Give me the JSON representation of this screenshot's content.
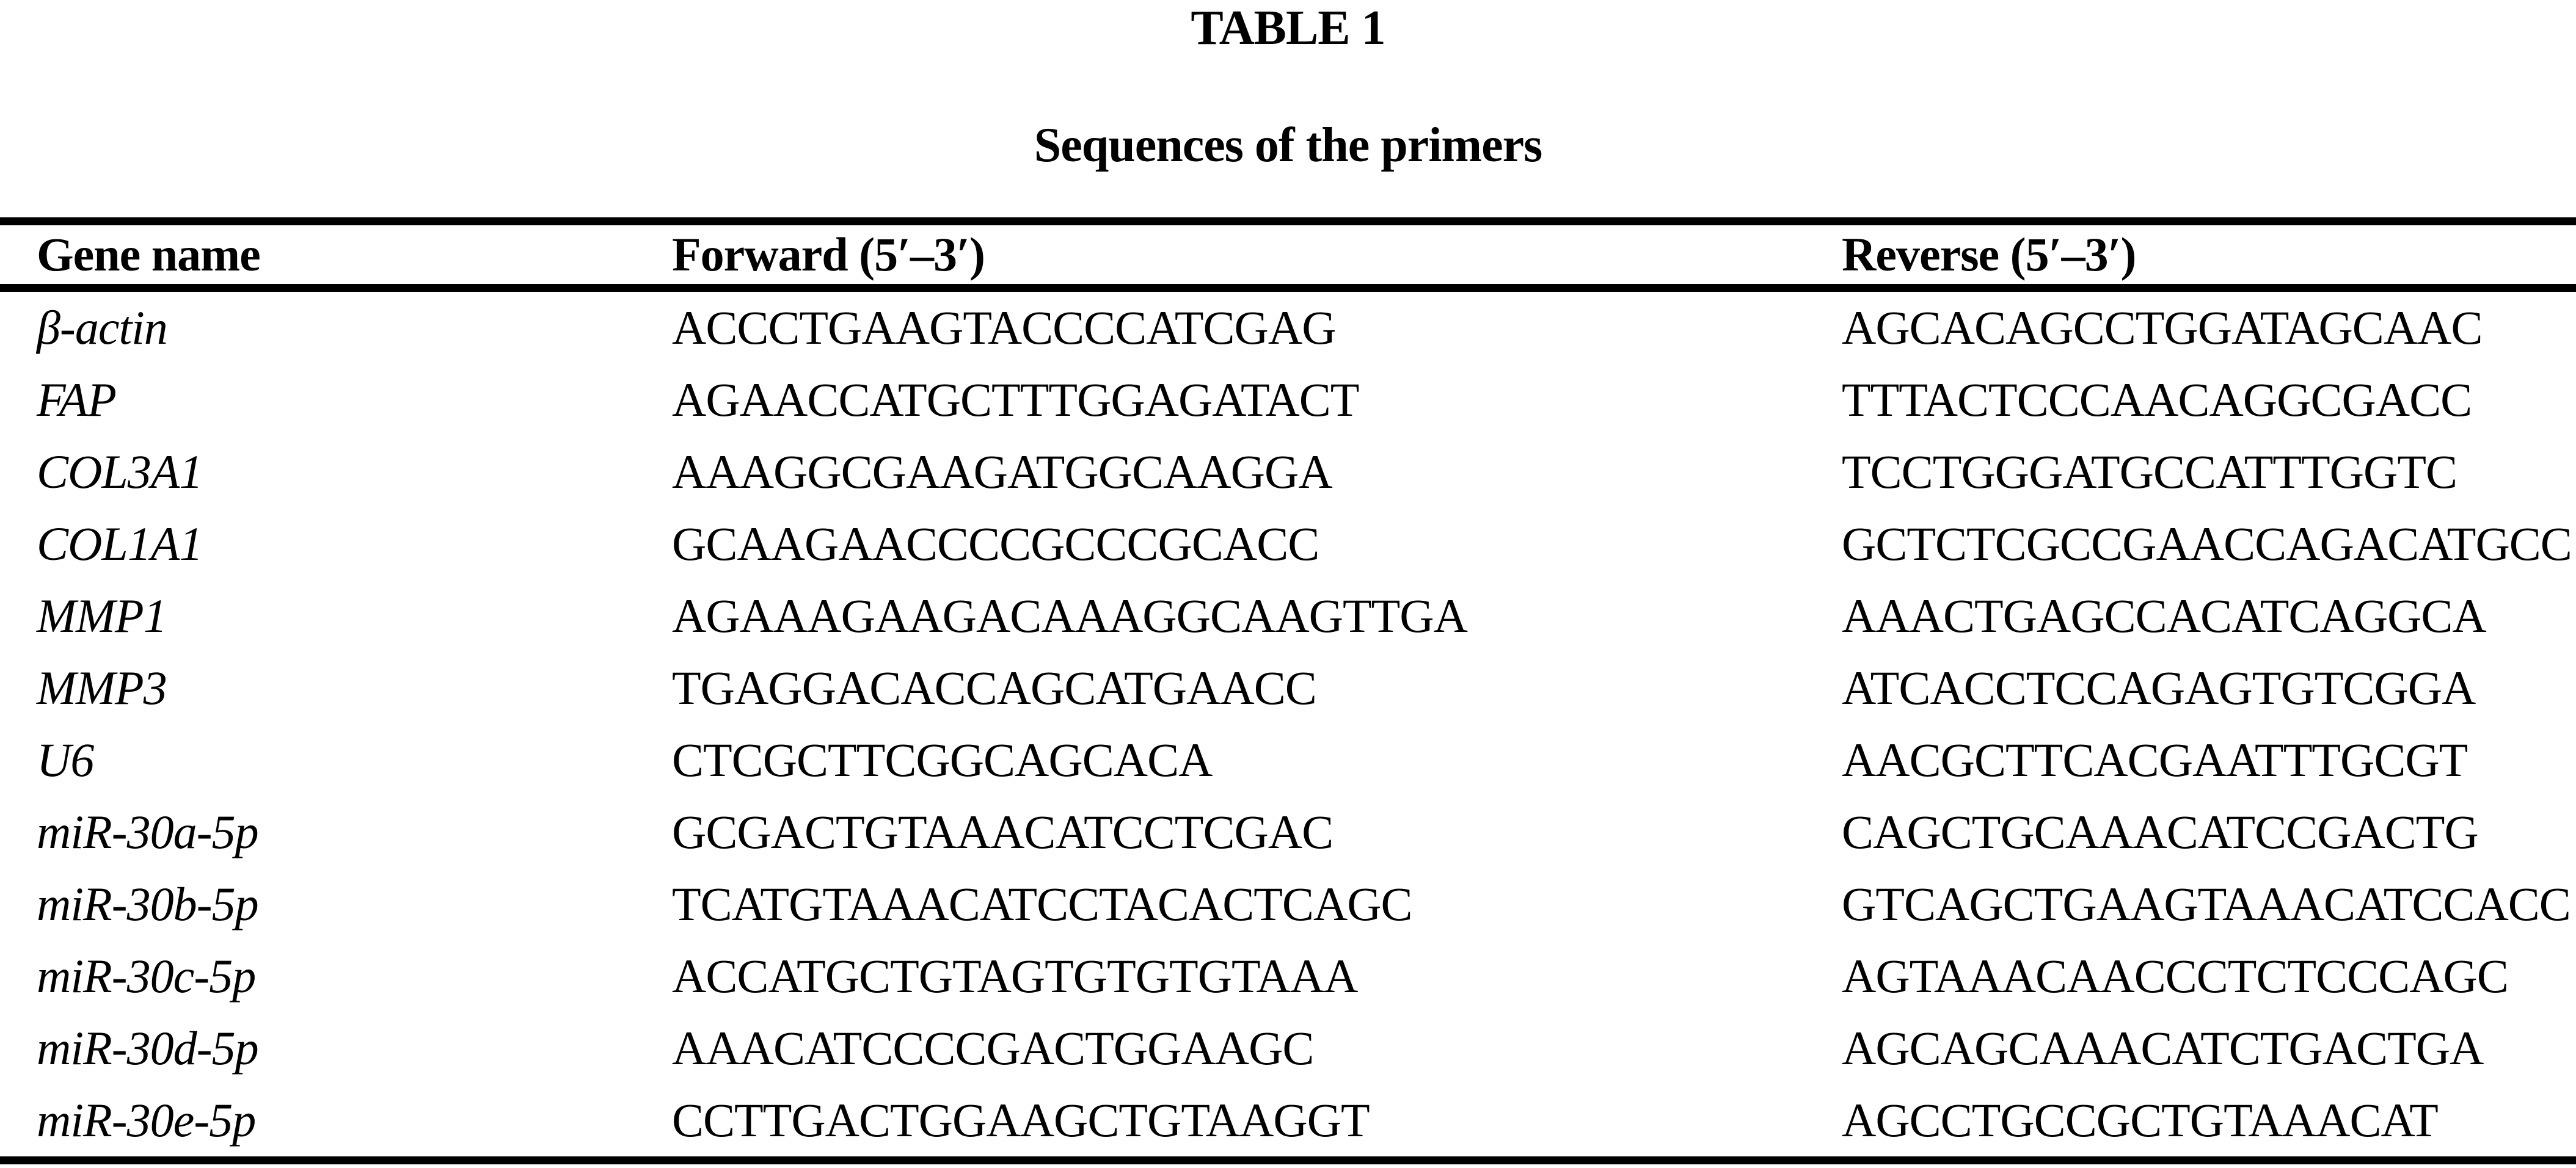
{
  "title": "TABLE 1",
  "subtitle": "Sequences of the primers",
  "table": {
    "columns": [
      "Gene name",
      "Forward (5′–3′)",
      "Reverse (5′–3′)"
    ],
    "rows": [
      {
        "gene": "β-actin",
        "forward": "ACCCTGAAGTACCCCATCGAG",
        "reverse": "AGCACAGCCTGGATAGCAAC"
      },
      {
        "gene": "FAP",
        "forward": "AGAACCATGCTTTGGAGATACT",
        "reverse": "TTTACTCCCAACAGGCGACC"
      },
      {
        "gene": "COL3A1",
        "forward": "AAAGGCGAAGATGGCAAGGA",
        "reverse": "TCCTGGGATGCCATTTGGTC"
      },
      {
        "gene": "COL1A1",
        "forward": "GCAAGAACCCCGCCCGCACC",
        "reverse": "GCTCTCGCCGAACCAGACATGCC"
      },
      {
        "gene": "MMP1",
        "forward": "AGAAAGAAGACAAAGGCAAGTTGA",
        "reverse": "AAACTGAGCCACATCAGGCA"
      },
      {
        "gene": "MMP3",
        "forward": "TGAGGACACCAGCATGAACC",
        "reverse": "ATCACCTCCAGAGTGTCGGA"
      },
      {
        "gene": "U6",
        "forward": "CTCGCTTCGGCAGCACA",
        "reverse": "AACGCTTCACGAATTTGCGT"
      },
      {
        "gene": "miR-30a-5p",
        "forward": "GCGACTGTAAACATCCTCGAC",
        "reverse": "CAGCTGCAAACATCCGACTG"
      },
      {
        "gene": "miR-30b-5p",
        "forward": "TCATGTAAACATCCTACACTCAGC",
        "reverse": "GTCAGCTGAAGTAAACATCCACC"
      },
      {
        "gene": "miR-30c-5p",
        "forward": "ACCATGCTGTAGTGTGTGTAAA",
        "reverse": "AGTAAACAACCCTCTCCCAGC"
      },
      {
        "gene": "miR-30d-5p",
        "forward": "AAACATCCCCGACTGGAAGC",
        "reverse": "AGCAGCAAACATCTGACTGA"
      },
      {
        "gene": "miR-30e-5p",
        "forward": "CCTTGACTGGAAGCTGTAAGGT",
        "reverse": "AGCCTGCCGCTGTAAACAT"
      }
    ]
  },
  "colors": {
    "text": "#000000",
    "background": "#ffffff",
    "rule": "#000000"
  }
}
